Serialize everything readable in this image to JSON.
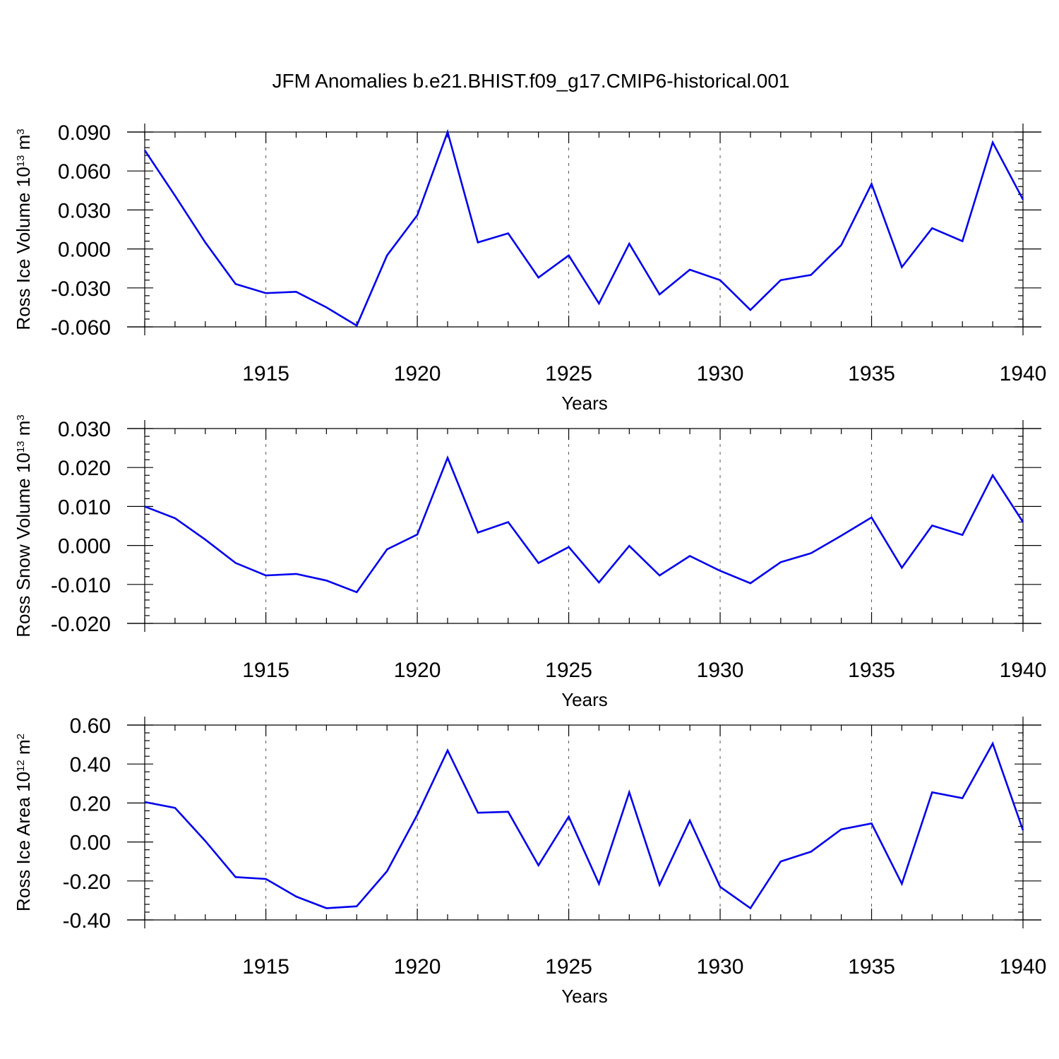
{
  "figure_title": "JFM Anomalies b.e21.BHIST.f09_g17.CMIP6-historical.001",
  "colors": {
    "line": "#0000ee",
    "axis": "#000000",
    "grid": "#555555"
  },
  "chart_data": [
    {
      "type": "line",
      "title": "",
      "xlabel": "Years",
      "ylabel": {
        "main": "Ross Ice Volume 10",
        "sup": "13",
        "unit": " m",
        "unit_sup": "3"
      },
      "xlim": [
        1911,
        1940
      ],
      "ylim": [
        -0.06,
        0.09
      ],
      "xticks": [
        1915,
        1920,
        1925,
        1930,
        1935,
        1940
      ],
      "yticks": [
        -0.06,
        -0.03,
        0.0,
        0.03,
        0.06,
        0.09
      ],
      "ytick_labels": [
        "-0.060",
        "-0.030",
        "0.000",
        "0.030",
        "0.060",
        "0.090"
      ],
      "grid": "x-dashed",
      "x": [
        1911,
        1912,
        1913,
        1914,
        1915,
        1916,
        1917,
        1918,
        1919,
        1920,
        1921,
        1922,
        1923,
        1924,
        1925,
        1926,
        1927,
        1928,
        1929,
        1930,
        1931,
        1932,
        1933,
        1934,
        1935,
        1936,
        1937,
        1938,
        1939,
        1940
      ],
      "values": [
        0.076,
        0.041,
        0.005,
        -0.027,
        -0.034,
        -0.033,
        -0.045,
        -0.059,
        -0.005,
        0.026,
        0.09,
        0.005,
        0.012,
        -0.022,
        -0.005,
        -0.042,
        0.004,
        -0.035,
        -0.016,
        -0.024,
        -0.047,
        -0.024,
        -0.02,
        0.003,
        0.05,
        -0.014,
        0.016,
        0.006,
        0.082,
        0.038
      ]
    },
    {
      "type": "line",
      "title": "",
      "xlabel": "Years",
      "ylabel": {
        "main": "Ross Snow Volume 10",
        "sup": "13",
        "unit": " m",
        "unit_sup": "3"
      },
      "xlim": [
        1911,
        1940
      ],
      "ylim": [
        -0.02,
        0.03
      ],
      "xticks": [
        1915,
        1920,
        1925,
        1930,
        1935,
        1940
      ],
      "yticks": [
        -0.02,
        -0.01,
        0.0,
        0.01,
        0.02,
        0.03
      ],
      "ytick_labels": [
        "-0.020",
        "-0.010",
        "0.000",
        "0.010",
        "0.020",
        "0.030"
      ],
      "grid": "x-dashed",
      "x": [
        1911,
        1912,
        1913,
        1914,
        1915,
        1916,
        1917,
        1918,
        1919,
        1920,
        1921,
        1922,
        1923,
        1924,
        1925,
        1926,
        1927,
        1928,
        1929,
        1930,
        1931,
        1932,
        1933,
        1934,
        1935,
        1936,
        1937,
        1938,
        1939,
        1940
      ],
      "values": [
        0.01,
        0.007,
        0.0015,
        -0.0045,
        -0.0077,
        -0.0073,
        -0.009,
        -0.012,
        -0.001,
        0.0028,
        0.0225,
        0.0033,
        0.006,
        -0.0045,
        -0.0004,
        -0.0095,
        -0.0001,
        -0.0077,
        -0.0027,
        -0.0065,
        -0.0097,
        -0.0043,
        -0.002,
        0.0025,
        0.0072,
        -0.0057,
        0.0051,
        0.0027,
        0.018,
        0.006
      ]
    },
    {
      "type": "line",
      "title": "",
      "xlabel": "Years",
      "ylabel": {
        "main": "Ross Ice Area 10",
        "sup": "12",
        "unit": " m",
        "unit_sup": "2"
      },
      "xlim": [
        1911,
        1940
      ],
      "ylim": [
        -0.4,
        0.6
      ],
      "xticks": [
        1915,
        1920,
        1925,
        1930,
        1935,
        1940
      ],
      "yticks": [
        -0.4,
        -0.2,
        0.0,
        0.2,
        0.4,
        0.6
      ],
      "ytick_labels": [
        "-0.40",
        "-0.20",
        "0.00",
        "0.20",
        "0.40",
        "0.60"
      ],
      "grid": "x-dashed",
      "x": [
        1911,
        1912,
        1913,
        1914,
        1915,
        1916,
        1917,
        1918,
        1919,
        1920,
        1921,
        1922,
        1923,
        1924,
        1925,
        1926,
        1927,
        1928,
        1929,
        1930,
        1931,
        1932,
        1933,
        1934,
        1935,
        1936,
        1937,
        1938,
        1939,
        1940
      ],
      "values": [
        0.205,
        0.175,
        0.005,
        -0.18,
        -0.19,
        -0.28,
        -0.34,
        -0.33,
        -0.15,
        0.14,
        0.47,
        0.15,
        0.155,
        -0.12,
        0.13,
        -0.215,
        0.255,
        -0.22,
        0.11,
        -0.23,
        -0.34,
        -0.1,
        -0.05,
        0.065,
        0.095,
        -0.215,
        0.255,
        0.225,
        0.505,
        0.06
      ]
    }
  ]
}
